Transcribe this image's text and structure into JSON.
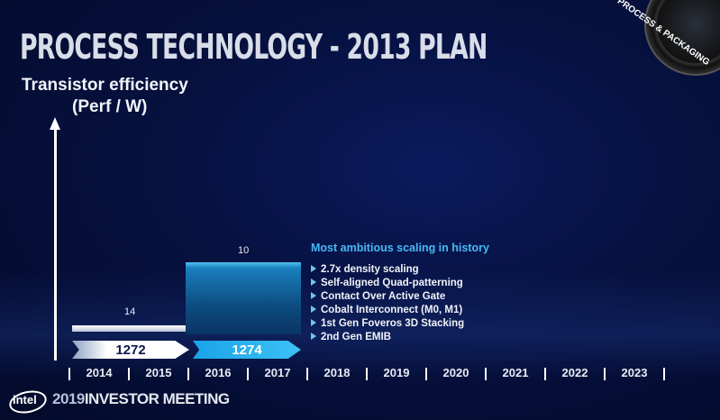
{
  "header": {
    "title": "PROCESS TECHNOLOGY - 2013 PLAN",
    "badge": "PROCESS & PACKAGING"
  },
  "axis": {
    "y_label_line1": "Transistor efficiency",
    "y_label_line2": "(Perf / W)"
  },
  "nodes": [
    {
      "label": "14",
      "chevron": "1272"
    },
    {
      "label": "10",
      "chevron": "1274"
    }
  ],
  "callout": {
    "title": "Most ambitious scaling in history",
    "bullets": [
      "2.7x density scaling",
      "Self-aligned Quad-patterning",
      "Contact Over Active Gate",
      "Cobalt Interconnect (M0, M1)",
      "1st Gen Foveros 3D Stacking",
      "2nd Gen EMIB"
    ]
  },
  "timeline": [
    "2014",
    "2015",
    "2016",
    "2017",
    "2018",
    "2019",
    "2020",
    "2021",
    "2022",
    "2023"
  ],
  "footer": {
    "logo": "intel",
    "year": "2019",
    "event": "INVESTOR MEETING"
  },
  "colors": {
    "background": "#06113f",
    "accent": "#47b8f5",
    "bar10": "#1a7fbf"
  }
}
